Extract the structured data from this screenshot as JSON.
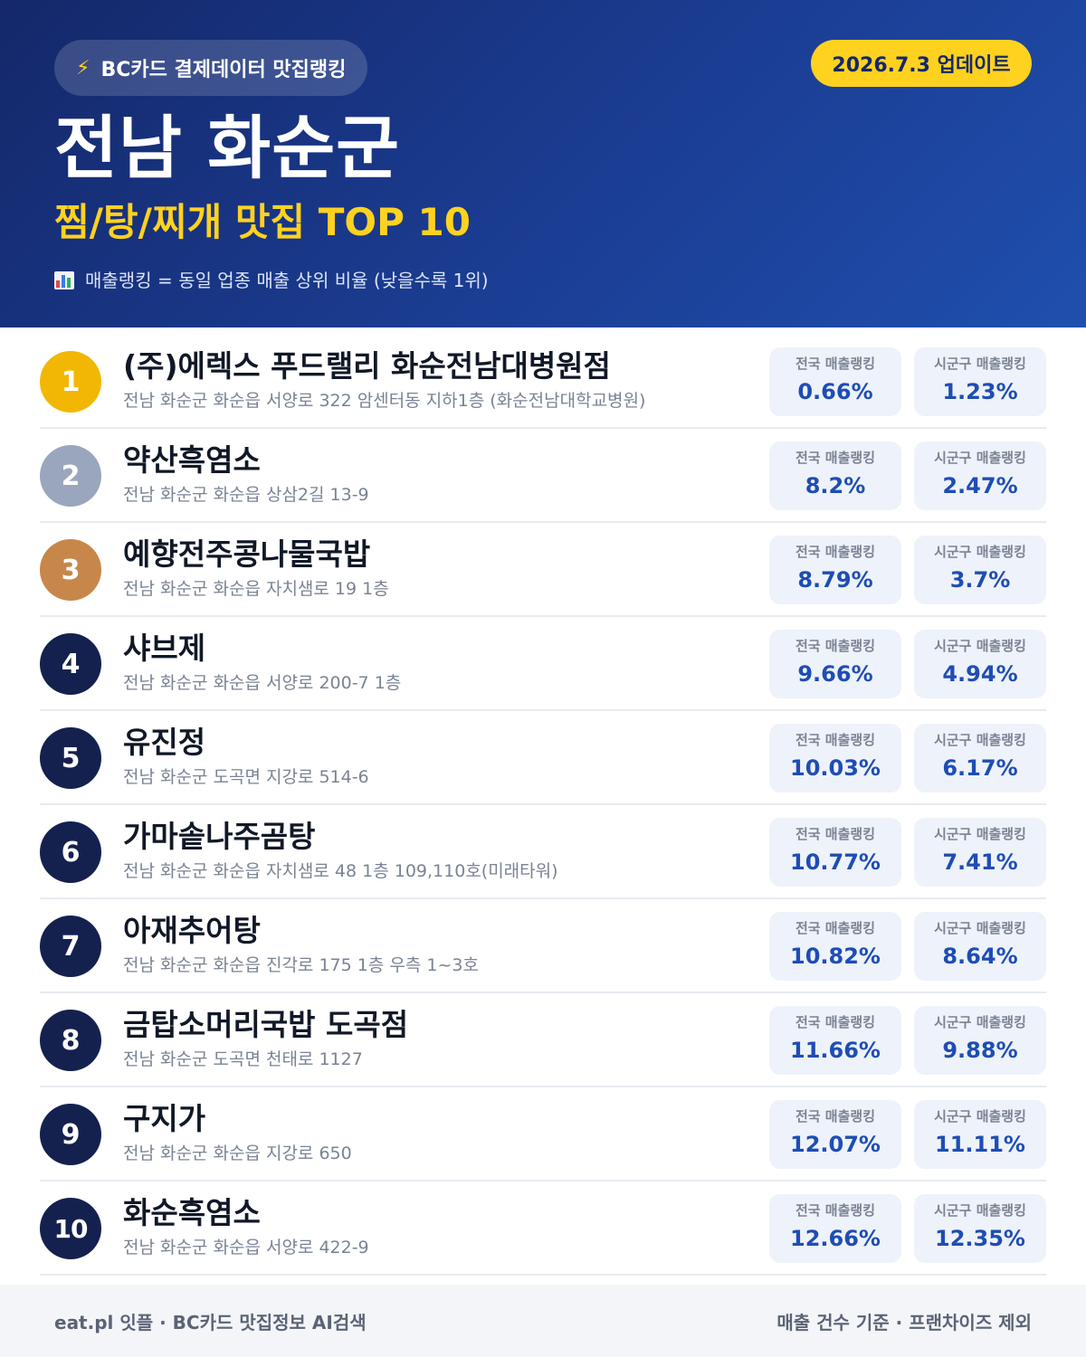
{
  "header": {
    "pill_icon": "⚡",
    "pill_label": "BC카드 결제데이터 맛집랭킹",
    "update_badge": "2026.7.3 업데이트",
    "region": "전남 화순군",
    "category_title": "찜/탕/찌개 맛집 TOP 10",
    "note": "매출랭킹 = 동일 업종 매출 상위 비율 (낮을수록 1위)",
    "note_icon": "bar-chart-icon"
  },
  "stat_labels": {
    "national": "전국 매출랭킹",
    "local": "시군구 매출랭킹"
  },
  "restaurants": [
    {
      "rank": "1",
      "name": "(주)에렉스 푸드랠리 화순전남대병원점",
      "address": "전남 화순군 화순읍 서양로 322 암센터동 지하1층 (화순전남대학교병원)",
      "national": "0.66%",
      "local": "1.23%"
    },
    {
      "rank": "2",
      "name": "약산흑염소",
      "address": "전남 화순군 화순읍 상삼2길 13-9",
      "national": "8.2%",
      "local": "2.47%"
    },
    {
      "rank": "3",
      "name": "예향전주콩나물국밥",
      "address": "전남 화순군 화순읍 자치샘로 19 1층",
      "national": "8.79%",
      "local": "3.7%"
    },
    {
      "rank": "4",
      "name": "샤브제",
      "address": "전남 화순군 화순읍 서양로 200-7 1층",
      "national": "9.66%",
      "local": "4.94%"
    },
    {
      "rank": "5",
      "name": "유진정",
      "address": "전남 화순군 도곡면 지강로 514-6",
      "national": "10.03%",
      "local": "6.17%"
    },
    {
      "rank": "6",
      "name": "가마솥나주곰탕",
      "address": "전남 화순군 화순읍 자치샘로 48 1층 109,110호(미래타워)",
      "national": "10.77%",
      "local": "7.41%"
    },
    {
      "rank": "7",
      "name": "아재추어탕",
      "address": "전남 화순군 화순읍 진각로 175 1층 우측 1~3호",
      "national": "10.82%",
      "local": "8.64%"
    },
    {
      "rank": "8",
      "name": "금탑소머리국밥 도곡점",
      "address": "전남 화순군 도곡면 천태로 1127",
      "national": "11.66%",
      "local": "9.88%"
    },
    {
      "rank": "9",
      "name": "구지가",
      "address": "전남 화순군 화순읍 지강로 650",
      "national": "12.07%",
      "local": "11.11%"
    },
    {
      "rank": "10",
      "name": "화순흑염소",
      "address": "전남 화순군 화순읍 서양로 422-9",
      "national": "12.66%",
      "local": "12.35%"
    }
  ],
  "footer": {
    "left": "eat.pl 잇플 · BC카드 맛집정보 AI검색",
    "right": "매출 건수 기준 · 프랜차이즈 제외"
  },
  "colors": {
    "header_bg": "#1b3d93",
    "accent_yellow": "#ffd21f",
    "gold": "#f2b705",
    "silver": "#9aa6bd",
    "bronze": "#c7874a",
    "rank_navy": "#14214f",
    "stat_value": "#1e4db4"
  }
}
